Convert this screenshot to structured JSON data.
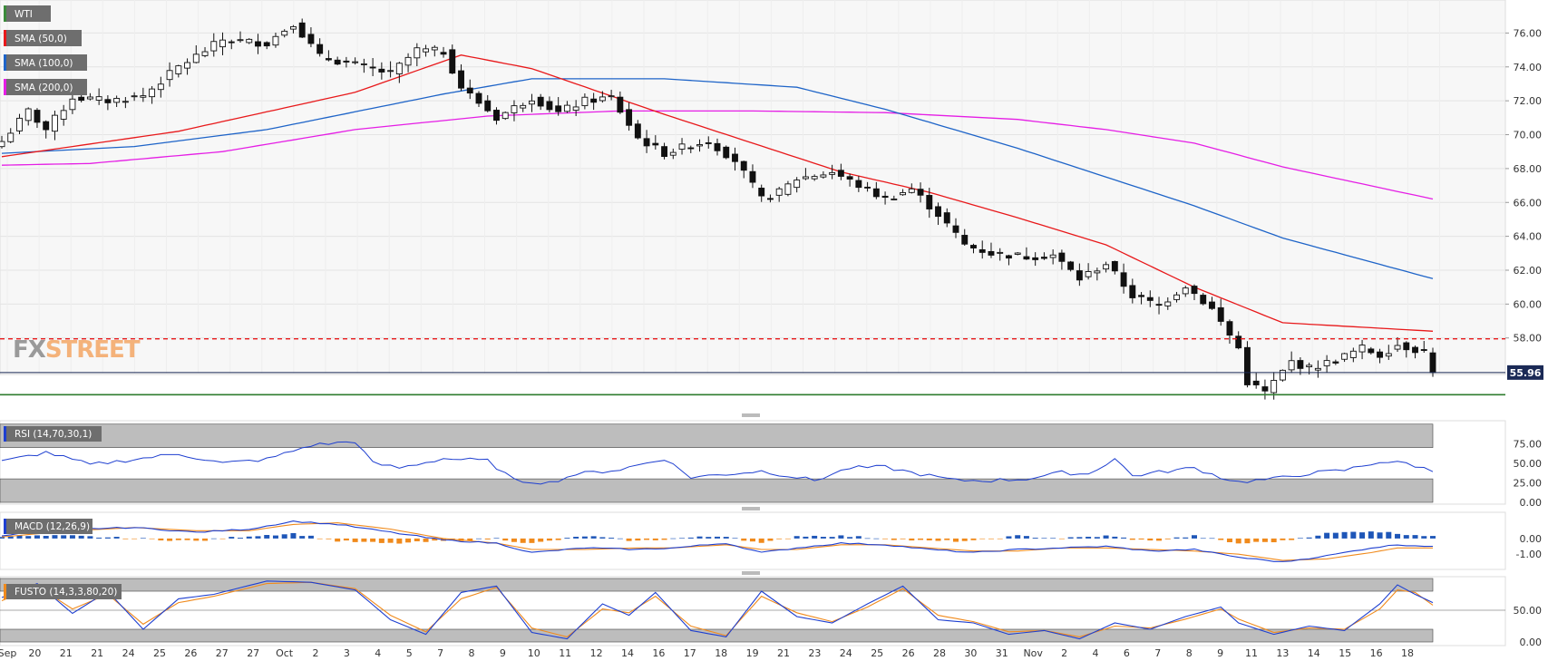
{
  "chart_data": {
    "type": "candlestick",
    "symbol": "WTI",
    "indicators": {
      "sma50": {
        "label": "SMA (50,0)",
        "color": "#e8191b"
      },
      "sma100": {
        "label": "SMA (100,0)",
        "color": "#1e64c8"
      },
      "sma200": {
        "label": "SMA (200,0)",
        "color": "#e51ee5"
      }
    },
    "price_axis": {
      "range": [
        54.4,
        77.2
      ],
      "ticks": [
        "76.00",
        "74.00",
        "72.00",
        "70.00",
        "68.00",
        "66.00",
        "64.00",
        "62.00",
        "60.00",
        "58.00"
      ]
    },
    "last_price": "55.96",
    "last_price_value": 55.96,
    "resistance_level": 57.95,
    "support_level": 54.65,
    "brand": {
      "fx": "FX",
      "street": "STREET"
    },
    "x_labels": [
      "Sep",
      "20",
      "21",
      "21",
      "24",
      "25",
      "26",
      "27",
      "27",
      "Oct",
      "2",
      "3",
      "4",
      "5",
      "7",
      "8",
      "9",
      "10",
      "11",
      "12",
      "14",
      "16",
      "17",
      "18",
      "19",
      "21",
      "23",
      "24",
      "25",
      "26",
      "28",
      "30",
      "31",
      "Nov",
      "2",
      "4",
      "6",
      "7",
      "8",
      "9",
      "11",
      "13",
      "14",
      "15",
      "16",
      "18"
    ],
    "close_waypoints": [
      [
        0,
        69.6
      ],
      [
        3,
        71.4
      ],
      [
        5,
        70.3
      ],
      [
        8,
        72.2
      ],
      [
        12,
        72.0
      ],
      [
        16,
        72.3
      ],
      [
        20,
        74.0
      ],
      [
        25,
        75.6
      ],
      [
        30,
        75.4
      ],
      [
        33,
        76.6
      ],
      [
        36,
        74.6
      ],
      [
        41,
        74.0
      ],
      [
        44,
        73.6
      ],
      [
        47,
        75.0
      ],
      [
        50,
        74.9
      ],
      [
        52,
        72.8
      ],
      [
        56,
        71.0
      ],
      [
        60,
        72.2
      ],
      [
        63,
        71.3
      ],
      [
        66,
        72.0
      ],
      [
        69,
        72.2
      ],
      [
        72,
        69.8
      ],
      [
        75,
        68.9
      ],
      [
        78,
        69.4
      ],
      [
        80,
        69.6
      ],
      [
        83,
        68.5
      ],
      [
        86,
        66.2
      ],
      [
        88,
        66.6
      ],
      [
        90,
        67.4
      ],
      [
        94,
        67.8
      ],
      [
        97,
        67.0
      ],
      [
        100,
        66.2
      ],
      [
        103,
        66.8
      ],
      [
        106,
        65.3
      ],
      [
        109,
        63.5
      ],
      [
        112,
        63.0
      ],
      [
        116,
        62.8
      ],
      [
        119,
        62.9
      ],
      [
        122,
        61.5
      ],
      [
        125,
        62.4
      ],
      [
        128,
        60.5
      ],
      [
        131,
        59.9
      ],
      [
        134,
        61.1
      ],
      [
        137,
        59.7
      ],
      [
        140,
        57.4
      ],
      [
        141,
        55.4
      ],
      [
        143,
        54.8
      ],
      [
        146,
        56.6
      ],
      [
        148,
        56.2
      ],
      [
        151,
        56.7
      ],
      [
        154,
        57.4
      ],
      [
        156,
        57.0
      ],
      [
        158,
        57.6
      ],
      [
        161,
        57.2
      ],
      [
        162,
        55.96
      ]
    ],
    "sma50": [
      [
        0,
        68.7
      ],
      [
        20,
        70.2
      ],
      [
        40,
        72.5
      ],
      [
        52,
        74.7
      ],
      [
        60,
        73.9
      ],
      [
        75,
        71.2
      ],
      [
        95,
        67.8
      ],
      [
        105,
        66.6
      ],
      [
        115,
        65.1
      ],
      [
        125,
        63.5
      ],
      [
        135,
        61.0
      ],
      [
        145,
        58.9
      ],
      [
        162,
        58.4
      ]
    ],
    "sma100": [
      [
        0,
        68.9
      ],
      [
        15,
        69.3
      ],
      [
        30,
        70.3
      ],
      [
        50,
        72.4
      ],
      [
        60,
        73.3
      ],
      [
        75,
        73.3
      ],
      [
        90,
        72.8
      ],
      [
        100,
        71.5
      ],
      [
        115,
        69.2
      ],
      [
        125,
        67.5
      ],
      [
        135,
        65.8
      ],
      [
        145,
        63.9
      ],
      [
        162,
        61.5
      ]
    ],
    "sma200": [
      [
        0,
        68.2
      ],
      [
        10,
        68.3
      ],
      [
        25,
        69.0
      ],
      [
        40,
        70.3
      ],
      [
        55,
        71.1
      ],
      [
        70,
        71.4
      ],
      [
        85,
        71.4
      ],
      [
        100,
        71.3
      ],
      [
        115,
        70.9
      ],
      [
        125,
        70.3
      ],
      [
        135,
        69.5
      ],
      [
        145,
        68.1
      ],
      [
        162,
        66.2
      ]
    ],
    "rsi": {
      "label": "RSI (14,70,30,1)",
      "range": [
        0,
        100
      ],
      "overbought": 70,
      "oversold": 30,
      "ticks": [
        "75.00",
        "50.00",
        "25.00",
        "0.00"
      ],
      "waypoints": [
        [
          0,
          52
        ],
        [
          5,
          64
        ],
        [
          10,
          48
        ],
        [
          15,
          55
        ],
        [
          20,
          62
        ],
        [
          25,
          50
        ],
        [
          30,
          55
        ],
        [
          35,
          73
        ],
        [
          40,
          78
        ],
        [
          42,
          50
        ],
        [
          45,
          44
        ],
        [
          50,
          56
        ],
        [
          55,
          53
        ],
        [
          58,
          28
        ],
        [
          62,
          25
        ],
        [
          65,
          36
        ],
        [
          70,
          42
        ],
        [
          75,
          56
        ],
        [
          78,
          32
        ],
        [
          82,
          36
        ],
        [
          86,
          40
        ],
        [
          90,
          32
        ],
        [
          92,
          28
        ],
        [
          96,
          44
        ],
        [
          100,
          45
        ],
        [
          103,
          38
        ],
        [
          108,
          28
        ],
        [
          112,
          28
        ],
        [
          116,
          30
        ],
        [
          120,
          38
        ],
        [
          123,
          36
        ],
        [
          126,
          56
        ],
        [
          128,
          34
        ],
        [
          132,
          40
        ],
        [
          135,
          44
        ],
        [
          138,
          32
        ],
        [
          140,
          26
        ],
        [
          144,
          30
        ],
        [
          148,
          37
        ],
        [
          152,
          41
        ],
        [
          156,
          52
        ],
        [
          159,
          50
        ],
        [
          162,
          40
        ]
      ]
    },
    "macd": {
      "label": "MACD (12,26,9)",
      "range": [
        -1.8,
        1.5
      ],
      "ticks": [
        "0.00",
        "-1.00"
      ],
      "macd_waypoints": [
        [
          0,
          0.2
        ],
        [
          8,
          0.6
        ],
        [
          15,
          0.7
        ],
        [
          22,
          0.4
        ],
        [
          28,
          0.6
        ],
        [
          33,
          1.1
        ],
        [
          38,
          0.9
        ],
        [
          44,
          0.4
        ],
        [
          50,
          -0.1
        ],
        [
          56,
          -0.3
        ],
        [
          60,
          -0.9
        ],
        [
          66,
          -0.6
        ],
        [
          72,
          -0.7
        ],
        [
          76,
          -0.6
        ],
        [
          82,
          -0.3
        ],
        [
          86,
          -0.9
        ],
        [
          90,
          -0.6
        ],
        [
          95,
          -0.3
        ],
        [
          100,
          -0.4
        ],
        [
          105,
          -0.7
        ],
        [
          110,
          -0.9
        ],
        [
          115,
          -0.7
        ],
        [
          120,
          -0.6
        ],
        [
          125,
          -0.5
        ],
        [
          130,
          -0.8
        ],
        [
          135,
          -0.7
        ],
        [
          140,
          -1.2
        ],
        [
          145,
          -1.5
        ],
        [
          150,
          -1.1
        ],
        [
          155,
          -0.6
        ],
        [
          158,
          -0.4
        ],
        [
          162,
          -0.5
        ]
      ],
      "signal_waypoints": [
        [
          0,
          0.1
        ],
        [
          8,
          0.5
        ],
        [
          15,
          0.7
        ],
        [
          22,
          0.5
        ],
        [
          28,
          0.5
        ],
        [
          33,
          0.9
        ],
        [
          38,
          1.0
        ],
        [
          44,
          0.6
        ],
        [
          50,
          0.0
        ],
        [
          56,
          -0.3
        ],
        [
          60,
          -0.7
        ],
        [
          66,
          -0.7
        ],
        [
          72,
          -0.6
        ],
        [
          76,
          -0.6
        ],
        [
          82,
          -0.4
        ],
        [
          86,
          -0.7
        ],
        [
          90,
          -0.7
        ],
        [
          95,
          -0.4
        ],
        [
          100,
          -0.4
        ],
        [
          105,
          -0.6
        ],
        [
          110,
          -0.8
        ],
        [
          115,
          -0.8
        ],
        [
          120,
          -0.6
        ],
        [
          125,
          -0.6
        ],
        [
          130,
          -0.7
        ],
        [
          135,
          -0.8
        ],
        [
          140,
          -1.0
        ],
        [
          145,
          -1.4
        ],
        [
          150,
          -1.3
        ],
        [
          155,
          -0.9
        ],
        [
          158,
          -0.6
        ],
        [
          162,
          -0.6
        ]
      ]
    },
    "fusto": {
      "label": "FUSTO (14,3,3,80,20)",
      "range": [
        0,
        100
      ],
      "overbought": 80,
      "oversold": 20,
      "ticks": [
        "50.00",
        "0.00"
      ],
      "k_waypoints": [
        [
          0,
          70
        ],
        [
          4,
          92
        ],
        [
          8,
          45
        ],
        [
          12,
          80
        ],
        [
          16,
          20
        ],
        [
          20,
          68
        ],
        [
          24,
          75
        ],
        [
          30,
          96
        ],
        [
          35,
          94
        ],
        [
          40,
          82
        ],
        [
          44,
          35
        ],
        [
          48,
          12
        ],
        [
          52,
          78
        ],
        [
          56,
          88
        ],
        [
          60,
          15
        ],
        [
          64,
          5
        ],
        [
          68,
          60
        ],
        [
          71,
          42
        ],
        [
          74,
          78
        ],
        [
          78,
          18
        ],
        [
          82,
          8
        ],
        [
          86,
          80
        ],
        [
          90,
          40
        ],
        [
          94,
          30
        ],
        [
          98,
          60
        ],
        [
          102,
          88
        ],
        [
          106,
          35
        ],
        [
          110,
          30
        ],
        [
          114,
          12
        ],
        [
          118,
          18
        ],
        [
          122,
          5
        ],
        [
          126,
          30
        ],
        [
          130,
          20
        ],
        [
          134,
          40
        ],
        [
          138,
          55
        ],
        [
          140,
          30
        ],
        [
          144,
          12
        ],
        [
          148,
          25
        ],
        [
          152,
          18
        ],
        [
          156,
          60
        ],
        [
          158,
          90
        ],
        [
          160,
          75
        ],
        [
          162,
          62
        ]
      ],
      "d_waypoints": [
        [
          0,
          65
        ],
        [
          4,
          88
        ],
        [
          8,
          52
        ],
        [
          12,
          75
        ],
        [
          16,
          28
        ],
        [
          20,
          62
        ],
        [
          24,
          72
        ],
        [
          30,
          92
        ],
        [
          35,
          94
        ],
        [
          40,
          84
        ],
        [
          44,
          42
        ],
        [
          48,
          16
        ],
        [
          52,
          68
        ],
        [
          56,
          86
        ],
        [
          60,
          22
        ],
        [
          64,
          8
        ],
        [
          68,
          52
        ],
        [
          71,
          46
        ],
        [
          74,
          72
        ],
        [
          78,
          25
        ],
        [
          82,
          10
        ],
        [
          86,
          72
        ],
        [
          90,
          46
        ],
        [
          94,
          32
        ],
        [
          98,
          55
        ],
        [
          102,
          84
        ],
        [
          106,
          42
        ],
        [
          110,
          32
        ],
        [
          114,
          16
        ],
        [
          118,
          18
        ],
        [
          122,
          8
        ],
        [
          126,
          25
        ],
        [
          130,
          22
        ],
        [
          134,
          36
        ],
        [
          138,
          52
        ],
        [
          140,
          36
        ],
        [
          144,
          15
        ],
        [
          148,
          22
        ],
        [
          152,
          20
        ],
        [
          156,
          52
        ],
        [
          158,
          82
        ],
        [
          160,
          78
        ],
        [
          162,
          58
        ]
      ]
    }
  }
}
